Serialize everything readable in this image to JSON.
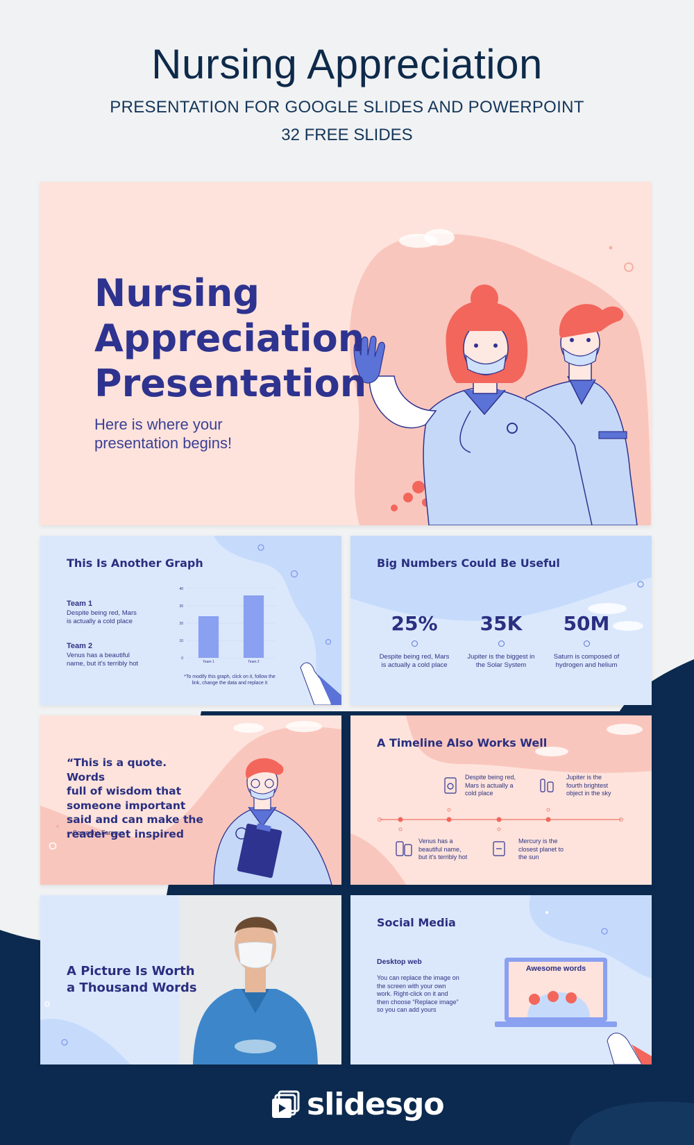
{
  "header": {
    "title": "Nursing Appreciation",
    "subtitle": "PRESENTATION FOR GOOGLE SLIDES AND POWERPOINT",
    "slides_count": "32 FREE SLIDES"
  },
  "hero": {
    "title_line1": "Nursing",
    "title_line2": "Appreciation",
    "title_line3": "Presentation",
    "subtitle_line1": "Here is where your",
    "subtitle_line2": "presentation begins!"
  },
  "graph_slide": {
    "title": "This Is Another Graph",
    "team1_title": "Team 1",
    "team1_desc_line1": "Despite being red, Mars",
    "team1_desc_line2": "is actually a cold place",
    "team2_title": "Team 2",
    "team2_desc_line1": "Venus has a beautiful",
    "team2_desc_line2": "name, but it's terribly hot",
    "note_line1": "*To modify this graph, click on it, follow the",
    "note_line2": "link, change the data and replace it"
  },
  "chart_data": {
    "type": "bar",
    "categories": [
      "Team 1",
      "Team 2"
    ],
    "values": [
      24,
      36
    ],
    "ylim": [
      0,
      40
    ],
    "yticks": [
      "0",
      "10",
      "20",
      "30",
      "40"
    ],
    "color": "#8aa0f0"
  },
  "numbers_slide": {
    "title": "Big Numbers Could Be Useful",
    "items": [
      {
        "value": "25%",
        "desc_line1": "Despite being red, Mars",
        "desc_line2": "is actually a cold place"
      },
      {
        "value": "35K",
        "desc_line1": "Jupiter is the biggest in",
        "desc_line2": "the Solar System"
      },
      {
        "value": "50M",
        "desc_line1": "Saturn is composed of",
        "desc_line2": "hydrogen and helium"
      }
    ]
  },
  "quote_slide": {
    "quote_line1": "“This is a quote. Words",
    "quote_line2": "full of wisdom that",
    "quote_line3": "someone important",
    "quote_line4": "said and can make the",
    "quote_line5": "reader get inspired",
    "author": "—Someone Famous"
  },
  "timeline_slide": {
    "title": "A Timeline Also Works Well",
    "items": [
      {
        "line1": "Despite being red,",
        "line2": "Mars is actually a",
        "line3": "cold place"
      },
      {
        "line1": "Jupiter is the",
        "line2": "fourth brightest",
        "line3": "object in the sky"
      },
      {
        "line1": "Venus has a",
        "line2": "beautiful name,",
        "line3": "but it's terribly hot"
      },
      {
        "line1": "Mercury is the",
        "line2": "closest planet to",
        "line3": "the sun"
      }
    ]
  },
  "picture_slide": {
    "title_line1": "A Picture Is Worth",
    "title_line2": "a Thousand Words"
  },
  "social_slide": {
    "title": "Social Media",
    "subtitle": "Desktop web",
    "desc_line1": "You can replace the image on",
    "desc_line2": "the screen with your own",
    "desc_line3": "work. Right-click on it and",
    "desc_line4": "then choose “Replace image”",
    "desc_line5": "so you can add yours",
    "screen_title": "Awesome words"
  },
  "footer": {
    "brand": "slidesgo"
  },
  "colors": {
    "navy": "#0c2a4f",
    "title_blue": "#2e338f",
    "pink_bg": "#fde3dc",
    "blue_bg": "#dbe8fc",
    "coral": "#f2665c"
  }
}
